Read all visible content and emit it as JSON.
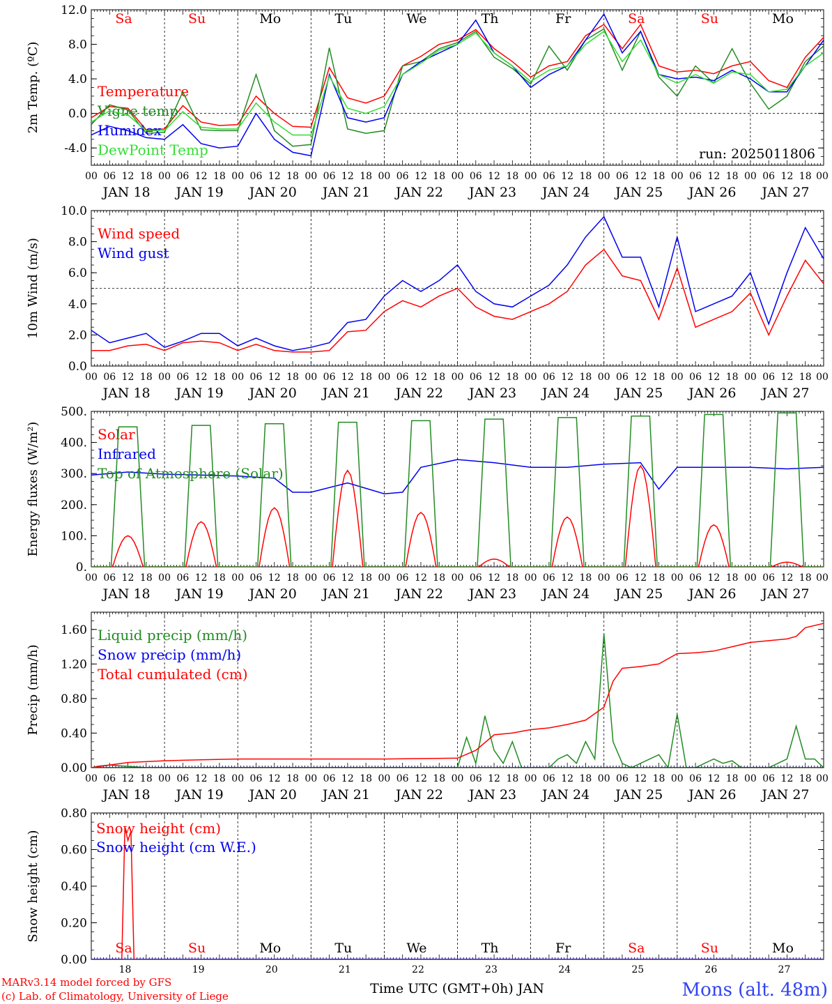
{
  "colors": {
    "red": "#ff0000",
    "green": "#228b22",
    "blue": "#0000ee",
    "lime": "#33dd33",
    "black": "#000000"
  },
  "x_axis": {
    "days": 10,
    "hour_labels": [
      "00",
      "06",
      "12",
      "18"
    ],
    "end_label": "00",
    "date_labels": [
      "JAN 18",
      "JAN 19",
      "JAN 20",
      "JAN 21",
      "JAN 22",
      "JAN 23",
      "JAN 24",
      "JAN 25",
      "JAN 26",
      "JAN 27"
    ],
    "weekdays": [
      "Sa",
      "Su",
      "Mo",
      "Tu",
      "We",
      "Th",
      "Fr",
      "Sa",
      "Su",
      "Mo"
    ],
    "weekend_flags": [
      1,
      1,
      0,
      0,
      0,
      0,
      0,
      1,
      1,
      0
    ],
    "day_numbers": [
      "18",
      "19",
      "20",
      "21",
      "22",
      "23",
      "24",
      "25",
      "26",
      "27"
    ],
    "bottom_label": "Time UTC (GMT+0h) JAN"
  },
  "footer": {
    "credit1": "MARv3.14 model forced by GFS",
    "credit2": "(c) Lab. of Climatology, University of Liege",
    "station": "Mons (alt. 48m)"
  },
  "chart_data": [
    {
      "type": "line",
      "ylabel": "2m Temp. (ºC)",
      "ylim": [
        -6,
        12
      ],
      "yticks": [
        "12.0",
        "8.0",
        "4.0",
        "0.0",
        "-4.0"
      ],
      "ytick_values": [
        12,
        8,
        4,
        0,
        -4
      ],
      "run": "run: 2025011806",
      "refline": 0,
      "series": [
        {
          "name": "Temperature",
          "color": "red",
          "t": [
            0,
            6,
            12,
            18,
            24,
            30,
            36,
            42,
            48,
            54,
            60,
            66,
            72,
            78,
            84,
            90,
            96,
            102,
            108,
            114,
            120,
            126,
            132,
            138,
            144,
            150,
            156,
            162,
            168,
            174,
            180,
            186,
            192,
            198,
            204,
            210,
            216,
            222,
            228,
            234,
            240
          ],
          "v": [
            -0.5,
            0.8,
            0.6,
            -1.9,
            -1.8,
            0.9,
            -1.0,
            -1.4,
            -1.3,
            2.0,
            0.0,
            -1.5,
            -1.6,
            5.3,
            1.8,
            1.2,
            2.0,
            5.5,
            6.6,
            8.0,
            8.5,
            9.7,
            7.5,
            6.0,
            4.2,
            5.5,
            6.0,
            9.0,
            10.3,
            7.5,
            10.3,
            5.5,
            4.8,
            5.0,
            4.6,
            5.5,
            6.0,
            3.8,
            3.0,
            6.5,
            8.8
          ]
        },
        {
          "name": "Vigne temp",
          "color": "green",
          "t": [
            0,
            6,
            12,
            18,
            24,
            30,
            36,
            42,
            48,
            54,
            60,
            66,
            72,
            78,
            84,
            90,
            96,
            102,
            108,
            114,
            120,
            126,
            132,
            138,
            144,
            150,
            156,
            162,
            168,
            174,
            180,
            186,
            192,
            198,
            204,
            210,
            216,
            222,
            228,
            234,
            240
          ],
          "v": [
            -1.3,
            1.0,
            0.4,
            -2.3,
            -2.2,
            2.5,
            -1.9,
            -2.0,
            -2.0,
            4.5,
            -2.0,
            -3.8,
            -3.6,
            7.6,
            -1.8,
            -2.3,
            -2.0,
            5.5,
            6.0,
            7.5,
            8.2,
            9.5,
            6.5,
            5.2,
            3.4,
            7.8,
            5.0,
            8.5,
            9.8,
            5.0,
            9.5,
            4.2,
            2.0,
            5.5,
            3.5,
            7.5,
            3.5,
            0.5,
            2.0,
            6.0,
            7.8
          ]
        },
        {
          "name": "Humidex",
          "color": "blue",
          "t": [
            0,
            6,
            12,
            18,
            24,
            30,
            36,
            42,
            48,
            54,
            60,
            66,
            72,
            78,
            84,
            90,
            96,
            102,
            108,
            114,
            120,
            126,
            132,
            138,
            144,
            150,
            156,
            162,
            168,
            174,
            180,
            186,
            192,
            198,
            204,
            210,
            216,
            222,
            228,
            234,
            240
          ],
          "v": [
            -2.5,
            -1.5,
            -2.0,
            -2.8,
            -3.0,
            -1.3,
            -3.5,
            -4.0,
            -3.8,
            0.0,
            -3.0,
            -4.5,
            -4.9,
            4.5,
            -0.5,
            -1.0,
            -0.5,
            4.5,
            6.0,
            7.0,
            8.0,
            10.8,
            7.0,
            5.5,
            3.0,
            4.5,
            5.5,
            8.5,
            11.5,
            7.0,
            9.5,
            4.5,
            4.0,
            4.2,
            3.8,
            5.0,
            4.0,
            2.5,
            2.5,
            5.5,
            8.5
          ]
        },
        {
          "name": "DewPoint Temp",
          "color": "lime",
          "t": [
            0,
            6,
            12,
            18,
            24,
            30,
            36,
            42,
            48,
            54,
            60,
            66,
            72,
            78,
            84,
            90,
            96,
            102,
            108,
            114,
            120,
            126,
            132,
            138,
            144,
            150,
            156,
            162,
            168,
            174,
            180,
            186,
            192,
            198,
            204,
            210,
            216,
            222,
            228,
            234,
            240
          ],
          "v": [
            -1.0,
            0.3,
            -0.2,
            -2.0,
            -2.0,
            0.2,
            -1.6,
            -1.8,
            -1.8,
            1.2,
            -1.0,
            -2.5,
            -2.5,
            4.3,
            0.6,
            0.0,
            0.8,
            4.5,
            5.8,
            7.3,
            8.0,
            9.3,
            7.0,
            5.5,
            3.7,
            5.0,
            5.5,
            8.0,
            9.5,
            6.0,
            8.5,
            4.5,
            3.5,
            4.5,
            3.5,
            4.8,
            4.5,
            2.5,
            2.8,
            5.5,
            7.0
          ]
        }
      ]
    },
    {
      "type": "line",
      "ylabel": "10m Wind (m/s)",
      "ylim": [
        0,
        10
      ],
      "yticks": [
        "10.0",
        "8.0",
        "6.0",
        "4.0",
        "2.0",
        "0.0"
      ],
      "ytick_values": [
        10,
        8,
        6,
        4,
        2,
        0
      ],
      "refline": 5,
      "series": [
        {
          "name": "Wind speed",
          "color": "red",
          "t": [
            0,
            6,
            12,
            18,
            24,
            30,
            36,
            42,
            48,
            54,
            60,
            66,
            72,
            78,
            84,
            90,
            96,
            102,
            108,
            114,
            120,
            126,
            132,
            138,
            144,
            150,
            156,
            162,
            168,
            174,
            180,
            186,
            192,
            198,
            204,
            210,
            216,
            222,
            228,
            234,
            240
          ],
          "v": [
            1.0,
            1.0,
            1.3,
            1.4,
            1.0,
            1.5,
            1.6,
            1.5,
            1.0,
            1.4,
            1.0,
            0.9,
            0.9,
            1.0,
            2.2,
            2.3,
            3.5,
            4.2,
            3.8,
            4.5,
            5.0,
            3.8,
            3.2,
            3.0,
            3.5,
            4.0,
            4.8,
            6.5,
            7.5,
            5.8,
            5.5,
            3.0,
            6.3,
            2.5,
            3.0,
            3.5,
            4.7,
            2.0,
            4.5,
            6.8,
            5.3
          ]
        },
        {
          "name": "Wind gust",
          "color": "blue",
          "t": [
            0,
            6,
            12,
            18,
            24,
            30,
            36,
            42,
            48,
            54,
            60,
            66,
            72,
            78,
            84,
            90,
            96,
            102,
            108,
            114,
            120,
            126,
            132,
            138,
            144,
            150,
            156,
            162,
            168,
            174,
            180,
            186,
            192,
            198,
            204,
            210,
            216,
            222,
            228,
            234,
            240
          ],
          "v": [
            2.3,
            1.5,
            1.8,
            2.1,
            1.2,
            1.6,
            2.1,
            2.1,
            1.3,
            1.8,
            1.3,
            1.0,
            1.2,
            1.5,
            2.8,
            3.0,
            4.5,
            5.5,
            4.8,
            5.5,
            6.5,
            4.8,
            4.0,
            3.8,
            4.5,
            5.2,
            6.5,
            8.3,
            9.6,
            7.0,
            7.0,
            3.8,
            8.3,
            3.5,
            4.0,
            4.5,
            6.0,
            2.7,
            6.0,
            8.9,
            6.9
          ]
        }
      ]
    },
    {
      "type": "line",
      "ylabel": "Energy fluxes (W/m²)",
      "ylim": [
        0,
        500
      ],
      "yticks": [
        "500.",
        "400.",
        "300.",
        "200.",
        "100.",
        "0."
      ],
      "ytick_values": [
        500,
        400,
        300,
        200,
        100,
        0
      ],
      "series": [
        {
          "name": "Solar",
          "color": "red",
          "peaks": [
            100,
            145,
            190,
            310,
            175,
            25,
            160,
            325,
            135,
            15
          ]
        },
        {
          "name": "Infrared",
          "color": "blue",
          "t": [
            0,
            12,
            24,
            36,
            48,
            60,
            66,
            72,
            84,
            96,
            102,
            108,
            120,
            132,
            144,
            156,
            168,
            180,
            186,
            192,
            204,
            216,
            228,
            240
          ],
          "v": [
            295,
            305,
            298,
            295,
            292,
            285,
            240,
            240,
            270,
            235,
            240,
            320,
            345,
            335,
            320,
            320,
            330,
            335,
            250,
            320,
            320,
            320,
            315,
            320
          ]
        },
        {
          "name": "Top of Atmosphere (Solar)",
          "color": "green",
          "peaks": [
            450,
            455,
            460,
            465,
            470,
            475,
            480,
            485,
            490,
            495
          ]
        }
      ]
    },
    {
      "type": "line",
      "ylabel": "Precip (mm/h)",
      "ylim": [
        0,
        1.8
      ],
      "yticks": [
        "1.60",
        "1.20",
        "0.80",
        "0.40",
        "0.00"
      ],
      "ytick_values": [
        1.6,
        1.2,
        0.8,
        0.4,
        0
      ],
      "series": [
        {
          "name": "Liquid precip (mm/h)",
          "color": "green",
          "t": [
            0,
            3,
            6,
            10,
            14,
            18,
            24,
            120,
            123,
            126,
            129,
            132,
            135,
            138,
            141,
            144,
            150,
            153,
            156,
            159,
            162,
            165,
            168,
            171,
            174,
            177,
            186,
            189,
            192,
            195,
            198,
            201,
            204,
            207,
            210,
            213,
            216,
            222,
            225,
            228,
            231,
            234,
            237,
            240
          ],
          "v": [
            0,
            0.02,
            0.03,
            0.02,
            0.01,
            0,
            0,
            0,
            0.35,
            0.05,
            0.6,
            0.2,
            0.05,
            0.3,
            0,
            0,
            0,
            0.1,
            0.15,
            0.05,
            0.3,
            0.1,
            1.55,
            0.3,
            0.05,
            0,
            0.15,
            0,
            0.62,
            0,
            0,
            0.05,
            0.1,
            0.05,
            0.08,
            0,
            0,
            0,
            0.05,
            0.1,
            0.48,
            0.1,
            0.1,
            0
          ]
        },
        {
          "name": "Snow precip (mm/h)",
          "color": "blue",
          "t": [
            0,
            240
          ],
          "v": [
            0,
            0
          ]
        },
        {
          "name": "Total cumulated (cm)",
          "color": "red",
          "t": [
            0,
            6,
            12,
            24,
            36,
            48,
            72,
            96,
            120,
            126,
            132,
            138,
            144,
            150,
            156,
            162,
            168,
            171,
            174,
            180,
            186,
            192,
            198,
            204,
            210,
            216,
            222,
            228,
            231,
            234,
            240
          ],
          "v": [
            0,
            0.03,
            0.06,
            0.08,
            0.09,
            0.1,
            0.1,
            0.1,
            0.11,
            0.2,
            0.38,
            0.4,
            0.44,
            0.46,
            0.5,
            0.55,
            0.7,
            1.0,
            1.15,
            1.17,
            1.2,
            1.32,
            1.33,
            1.35,
            1.4,
            1.45,
            1.47,
            1.49,
            1.52,
            1.62,
            1.67
          ]
        }
      ]
    },
    {
      "type": "line",
      "ylabel": "Snow height (cm)",
      "ylim": [
        0,
        0.8
      ],
      "yticks": [
        "0.80",
        "0.60",
        "0.40",
        "0.20",
        "0.00"
      ],
      "ytick_values": [
        0.8,
        0.6,
        0.4,
        0.2,
        0
      ],
      "series": [
        {
          "name": "Snow height (cm)",
          "color": "red",
          "t": [
            0,
            10,
            11,
            12,
            13,
            14,
            240
          ],
          "v": [
            0,
            0,
            0.72,
            0.65,
            0.7,
            0,
            0
          ]
        },
        {
          "name": "Snow height (cm W.E.)",
          "color": "blue",
          "t": [
            0,
            240
          ],
          "v": [
            0,
            0
          ]
        }
      ]
    }
  ]
}
